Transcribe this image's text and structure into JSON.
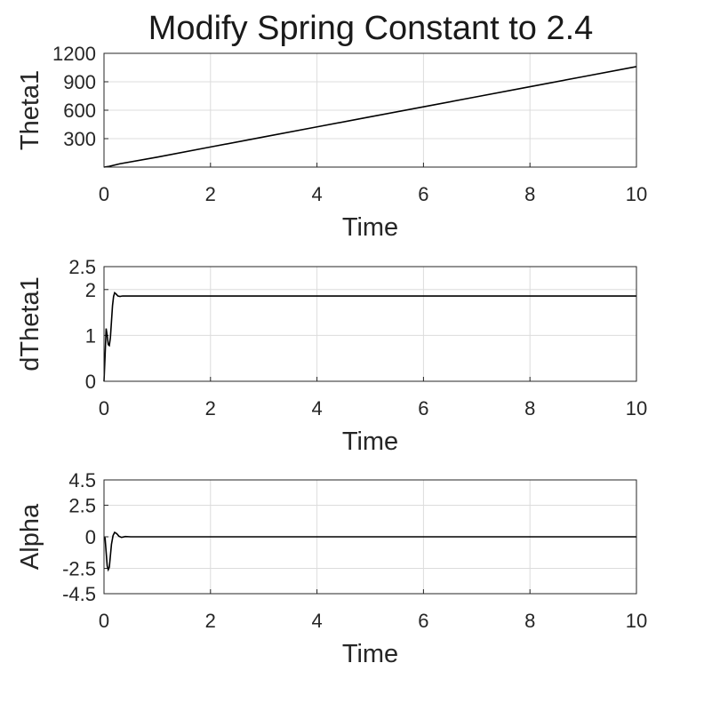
{
  "figure": {
    "title": "Modify Spring Constant to 2.4"
  },
  "chart_data": [
    {
      "type": "line",
      "xlabel": "Time",
      "ylabel": "Theta1",
      "xlim": [
        0,
        10
      ],
      "ylim": [
        0,
        1200
      ],
      "xticks": [
        "0",
        "2",
        "4",
        "6",
        "8",
        "10"
      ],
      "yticks": [
        {
          "value": 300,
          "label": "300"
        },
        {
          "value": 600,
          "label": "600"
        },
        {
          "value": 900,
          "label": "900"
        },
        {
          "value": 1200,
          "label": "1200"
        }
      ],
      "grid": true,
      "line_color": "#000000",
      "x": [
        0,
        0.1,
        0.3,
        1,
        2,
        3,
        4,
        5,
        6,
        7,
        8,
        9,
        10
      ],
      "y": [
        0,
        8,
        35,
        105,
        212,
        318,
        424,
        530,
        636,
        742,
        848,
        954,
        1060
      ]
    },
    {
      "type": "line",
      "xlabel": "Time",
      "ylabel": "dTheta1",
      "xlim": [
        0,
        10
      ],
      "ylim": [
        0,
        2.5
      ],
      "xticks": [
        "0",
        "2",
        "4",
        "6",
        "8",
        "10"
      ],
      "yticks": [
        {
          "value": 0,
          "label": "0"
        },
        {
          "value": 1,
          "label": "1"
        },
        {
          "value": 2,
          "label": "2"
        },
        {
          "value": 2.5,
          "label": "2.5"
        }
      ],
      "grid": true,
      "line_color": "#000000",
      "x": [
        0,
        0.02,
        0.04,
        0.06,
        0.08,
        0.1,
        0.12,
        0.14,
        0.16,
        0.18,
        0.2,
        0.23,
        0.26,
        0.3,
        0.35,
        0.4,
        0.5,
        0.7,
        1,
        2,
        4,
        6,
        8,
        10
      ],
      "y": [
        0,
        0.55,
        1.15,
        1.0,
        0.8,
        0.78,
        0.95,
        1.3,
        1.65,
        1.85,
        1.93,
        1.9,
        1.86,
        1.85,
        1.86,
        1.86,
        1.86,
        1.86,
        1.86,
        1.86,
        1.86,
        1.86,
        1.86,
        1.86
      ]
    },
    {
      "type": "line",
      "xlabel": "Time",
      "ylabel": "Alpha",
      "xlim": [
        0,
        10
      ],
      "ylim": [
        -4.5,
        4.5
      ],
      "xticks": [
        "0",
        "2",
        "4",
        "6",
        "8",
        "10"
      ],
      "yticks": [
        {
          "value": -4.5,
          "label": "-4.5"
        },
        {
          "value": -2.5,
          "label": "-2.5"
        },
        {
          "value": 0,
          "label": "0"
        },
        {
          "value": 2.5,
          "label": "2.5"
        },
        {
          "value": 4.5,
          "label": "4.5"
        }
      ],
      "grid": true,
      "line_color": "#000000",
      "x": [
        0,
        0.02,
        0.04,
        0.06,
        0.08,
        0.1,
        0.12,
        0.14,
        0.17,
        0.2,
        0.24,
        0.28,
        0.33,
        0.4,
        0.5,
        0.7,
        1,
        2,
        4,
        6,
        8,
        10
      ],
      "y": [
        0,
        -0.1,
        -1.2,
        -2.3,
        -2.6,
        -2.4,
        -1.5,
        -0.6,
        0.1,
        0.35,
        0.25,
        0.05,
        -0.05,
        0.02,
        0,
        0,
        0,
        0,
        0,
        0,
        0,
        0
      ]
    }
  ]
}
